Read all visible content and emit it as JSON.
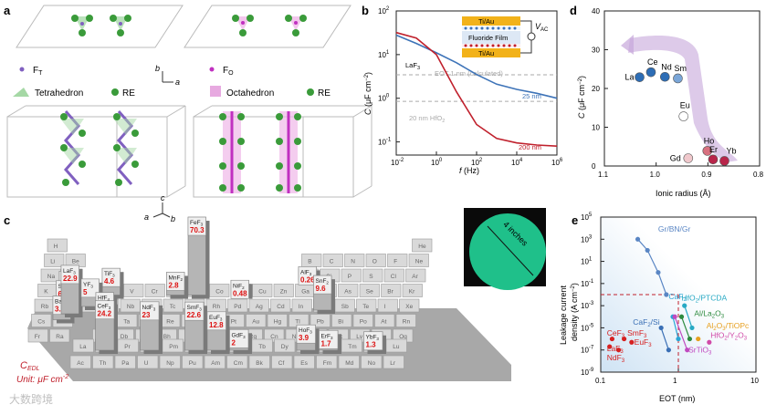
{
  "figure": {
    "panel_labels": {
      "a": "a",
      "b": "b",
      "c": "c",
      "d": "d",
      "e": "e"
    },
    "panel_a": {
      "sites": {
        "tetra": "F",
        "tetra_sub": "T",
        "octa": "F",
        "octa_sub": "O"
      },
      "legend": {
        "tetrahedron": "Tetrahedron",
        "octahedron": "Octahedron",
        "re": "RE"
      },
      "axes": {
        "b": "b",
        "a": "a",
        "c": "c"
      }
    },
    "panel_c": {
      "ptable_symbols": [
        "H",
        "He",
        "Li",
        "Be",
        "B",
        "C",
        "N",
        "O",
        "F",
        "Ne",
        "Na",
        "Mg",
        "Al",
        "Si",
        "P",
        "S",
        "Cl",
        "Ar",
        "K",
        "Ca",
        "Sc",
        "Ti",
        "V",
        "Cr",
        "Mn",
        "Fe",
        "Co",
        "Ni",
        "Cu",
        "Zn",
        "Ga",
        "Ge",
        "As",
        "Se",
        "Br",
        "Kr",
        "Rb",
        "Sr",
        "Y",
        "Zr",
        "Nb",
        "Mo",
        "Tc",
        "Ru",
        "Rh",
        "Pd",
        "Ag",
        "Cd",
        "In",
        "Sn",
        "Sb",
        "Te",
        "I",
        "Xe",
        "Cs",
        "Ba",
        "Hf",
        "Ta",
        "W",
        "Re",
        "Os",
        "Ir",
        "Pt",
        "Au",
        "Hg",
        "Tl",
        "Pb",
        "Bi",
        "Po",
        "At",
        "Rn",
        "Fr",
        "Ra",
        "Rf",
        "Db",
        "Sg",
        "Bh",
        "Hs",
        "Mt",
        "Ds",
        "Rg",
        "Cn",
        "Nh",
        "Fl",
        "Mc",
        "Lv",
        "Ts",
        "Og",
        "La",
        "Ce",
        "Pr",
        "Nd",
        "Pm",
        "Sm",
        "Eu",
        "Gd",
        "Tb",
        "Dy",
        "Ho",
        "Er",
        "Tm",
        "Yb",
        "Lu",
        "Ac",
        "Th",
        "Pa",
        "U",
        "Np",
        "Pu",
        "Am",
        "Cm",
        "Bk",
        "Cf",
        "Es",
        "Fm",
        "Md",
        "No",
        "Lr"
      ],
      "caption_line1": "C",
      "caption_line1_sub": "EDL",
      "caption_line2": "Unit: μF cm",
      "caption_line2_sup": "-2",
      "photo_label": "4 inches"
    },
    "watermark": "大数跨境"
  },
  "chart_data": [
    {
      "type": "bar",
      "panel": "c",
      "title": "",
      "ylabel": "C_EDL (μF cm^-2)",
      "categories": [
        "CaF2",
        "SrF2",
        "BaF2",
        "TiF3",
        "LaF3",
        "YF3",
        "HfF4",
        "CeF3",
        "MnF2",
        "FeF3",
        "NdF3",
        "NiF2",
        "SmF3",
        "EuF3",
        "GdF3",
        "AlF3",
        "SnF2",
        "HoF3",
        "ErF3",
        "YbF3"
      ],
      "values": [
        3.2,
        6.1,
        3.1,
        4.6,
        22.9,
        5.0,
        8.2,
        24.2,
        2.8,
        70.3,
        23.0,
        0.48,
        22.6,
        12.8,
        2.0,
        0.26,
        9.6,
        3.9,
        1.7,
        1.3
      ]
    },
    {
      "type": "line",
      "panel": "b",
      "xlabel": "f (Hz)",
      "ylabel": "C (μF cm^-2)",
      "xscale": "log",
      "yscale": "log",
      "xlim": [
        0.01,
        1000000
      ],
      "ylim": [
        0.05,
        100
      ],
      "x_ticks": [
        "10^-2",
        "10^0",
        "10^2",
        "10^4",
        "10^6"
      ],
      "y_ticks": [
        "10^-1",
        "10^0",
        "10^1",
        "10^2"
      ],
      "series": [
        {
          "name": "25 nm",
          "x": [
            0.01,
            0.1,
            1,
            10,
            100,
            1000,
            10000,
            100000,
            1000000
          ],
          "y": [
            28,
            18,
            11,
            6.5,
            3.5,
            2.1,
            1.6,
            1.3,
            1.0
          ]
        },
        {
          "name": "200 nm",
          "x": [
            0.01,
            0.1,
            1,
            10,
            100,
            1000,
            10000,
            100000,
            1000000
          ],
          "y": [
            32,
            24,
            10,
            1.4,
            0.25,
            0.12,
            0.095,
            0.085,
            0.08
          ]
        }
      ],
      "reference_lines": [
        {
          "label": "EOT 1 nm (calculated)",
          "y": 3.45
        },
        {
          "label": "20 nm HfO2",
          "y": 0.85
        }
      ],
      "annotations": [
        "LaF3",
        "25 nm",
        "200 nm"
      ],
      "inset": {
        "top": "Ti/Au",
        "middle": "Fluoride Film",
        "bottom": "Ti/Au",
        "voltage": "V_AC"
      }
    },
    {
      "type": "scatter",
      "panel": "d",
      "xlabel": "Ionic radius (Å)",
      "ylabel": "C (μF cm^-2)",
      "xlim": [
        1.1,
        0.8
      ],
      "ylim": [
        0,
        40
      ],
      "x_ticks": [
        "1.1",
        "1.0",
        "0.9",
        "0.8"
      ],
      "y_ticks": [
        "0",
        "10",
        "20",
        "30",
        "40"
      ],
      "points": [
        {
          "label": "La",
          "x": 1.032,
          "y": 22.9
        },
        {
          "label": "Ce",
          "x": 1.01,
          "y": 24.2
        },
        {
          "label": "Nd",
          "x": 0.983,
          "y": 23.0
        },
        {
          "label": "Sm",
          "x": 0.958,
          "y": 22.6
        },
        {
          "label": "Eu",
          "x": 0.947,
          "y": 12.8
        },
        {
          "label": "Gd",
          "x": 0.938,
          "y": 2.0
        },
        {
          "label": "Ho",
          "x": 0.901,
          "y": 3.9
        },
        {
          "label": "Er",
          "x": 0.89,
          "y": 1.7
        },
        {
          "label": "Yb",
          "x": 0.868,
          "y": 1.3
        }
      ]
    },
    {
      "type": "scatter",
      "panel": "e",
      "xlabel": "EOT (nm)",
      "ylabel": "Leakage current density (A cm^-2)",
      "xscale": "log",
      "yscale": "log",
      "xlim": [
        0.1,
        10
      ],
      "ylim": [
        1e-09,
        100000.0
      ],
      "x_ticks": [
        "0.1",
        "1",
        "10"
      ],
      "y_ticks": [
        "10^-9",
        "10^-7",
        "10^-5",
        "10^-3",
        "10^-1",
        "10^1",
        "10^3",
        "10^5"
      ],
      "series": [
        {
          "name": "Gr/BN/Gr",
          "x": [
            0.3,
            0.4,
            0.55,
            0.7
          ],
          "y": [
            1000,
            100,
            1,
            0.01
          ]
        },
        {
          "name": "CaF2",
          "x": [
            0.85,
            1.0
          ],
          "y": [
            0.0001,
            1e-06
          ]
        },
        {
          "name": "CaF2/Si",
          "x": [
            0.6,
            0.75
          ],
          "y": [
            1e-05,
            1e-07
          ]
        },
        {
          "name": "HfO2/PTCDA",
          "x": [
            1.2,
            1.5
          ],
          "y": [
            0.001,
            1e-05
          ]
        },
        {
          "name": "Al/La2O3",
          "x": [
            1.1,
            1.4
          ],
          "y": [
            0.0001,
            1e-06
          ]
        },
        {
          "name": "SrTiO3",
          "x": [
            0.9,
            1.3
          ],
          "y": [
            0.0001,
            1e-07
          ]
        },
        {
          "name": "Al2O3/TiOPc",
          "x": [
            1.8
          ],
          "y": [
            1e-06
          ]
        },
        {
          "name": "HfO2/Y2O3",
          "x": [
            2.5
          ],
          "y": [
            5e-07
          ]
        },
        {
          "name": "CeF3",
          "x": [
            0.14
          ],
          "y": [
            1e-06
          ]
        },
        {
          "name": "SmF3",
          "x": [
            0.2
          ],
          "y": [
            1e-06
          ]
        },
        {
          "name": "EuF3",
          "x": [
            0.25
          ],
          "y": [
            5e-07
          ]
        },
        {
          "name": "LaF3",
          "x": [
            0.13
          ],
          "y": [
            2e-07
          ]
        },
        {
          "name": "NdF3",
          "x": [
            0.17
          ],
          "y": [
            1e-07
          ]
        }
      ],
      "reference_lines": [
        {
          "axis": "x",
          "value": 1
        },
        {
          "axis": "y",
          "value": 0.01
        }
      ]
    }
  ]
}
